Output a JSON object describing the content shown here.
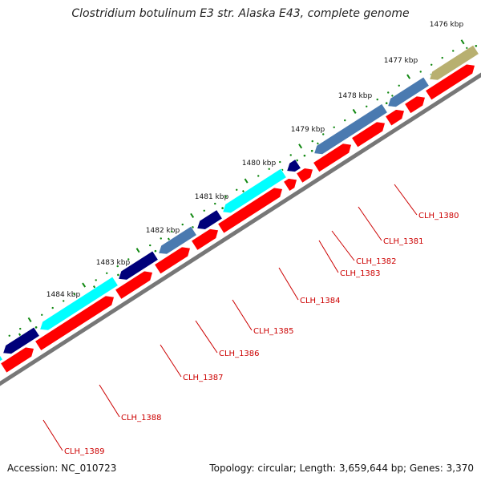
{
  "title": "Clostridium botulinum E3 str. Alaska E43, complete genome",
  "footer": {
    "accession": "Accession: NC_010723",
    "summary": "Topology: circular; Length: 3,659,644 bp; Genes: 3,370"
  },
  "colors": {
    "backbone": "#777777",
    "forward_gene": "#ff0000",
    "steel_gene": "#4a7ab0",
    "navy_gene": "#00007a",
    "cyan_gene": "#00ffff",
    "khaki_gene": "#b8b070",
    "tick": "#118811",
    "label": "#cc0000"
  },
  "kbp_ticks": [
    "1476 kbp",
    "1477 kbp",
    "1478 kbp",
    "1479 kbp",
    "1480 kbp",
    "1481 kbp",
    "1482 kbp",
    "1483 kbp",
    "1484 kbp"
  ],
  "gene_labels": [
    "CLH_1380",
    "CLH_1381",
    "CLH_1382",
    "CLH_1383",
    "CLH_1384",
    "CLH_1385",
    "CLH_1386",
    "CLH_1387",
    "CLH_1388",
    "CLH_1389"
  ]
}
